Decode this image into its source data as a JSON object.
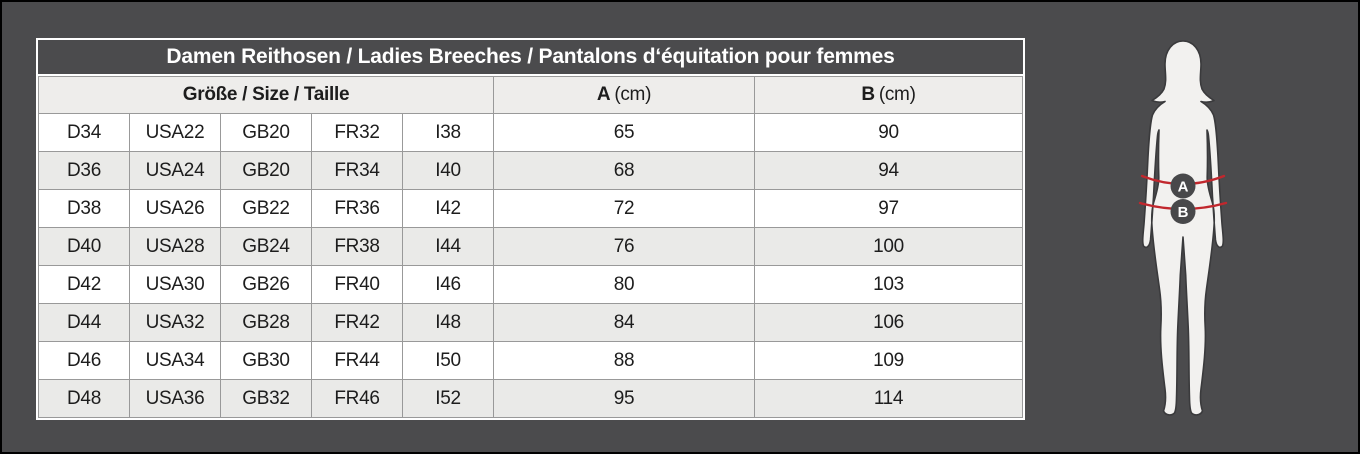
{
  "page": {
    "background": "#4b4b4d",
    "accent_red": "#c1272d",
    "silhouette_fill": "#f2f1ef",
    "badge_fill": "#48484a"
  },
  "table": {
    "title": "Damen Reithosen / Ladies Breeches / Pantalons d‘équitation pour femmes",
    "size_header": "Größe / Size / Taille",
    "col_a": {
      "label": "A",
      "unit": "(cm)"
    },
    "col_b": {
      "label": "B",
      "unit": "(cm)"
    },
    "rows": [
      [
        "D34",
        "USA22",
        "GB20",
        "FR32",
        "I38",
        "65",
        "90"
      ],
      [
        "D36",
        "USA24",
        "GB20",
        "FR34",
        "I40",
        "68",
        "94"
      ],
      [
        "D38",
        "USA26",
        "GB22",
        "FR36",
        "I42",
        "72",
        "97"
      ],
      [
        "D40",
        "USA28",
        "GB24",
        "FR38",
        "I44",
        "76",
        "100"
      ],
      [
        "D42",
        "USA30",
        "GB26",
        "FR40",
        "I46",
        "80",
        "103"
      ],
      [
        "D44",
        "USA32",
        "GB28",
        "FR42",
        "I48",
        "84",
        "106"
      ],
      [
        "D46",
        "USA34",
        "GB30",
        "FR44",
        "I50",
        "88",
        "109"
      ],
      [
        "D48",
        "USA36",
        "GB32",
        "FR46",
        "I52",
        "95",
        "114"
      ]
    ]
  },
  "figure": {
    "badge_a": "A",
    "badge_b": "B"
  }
}
